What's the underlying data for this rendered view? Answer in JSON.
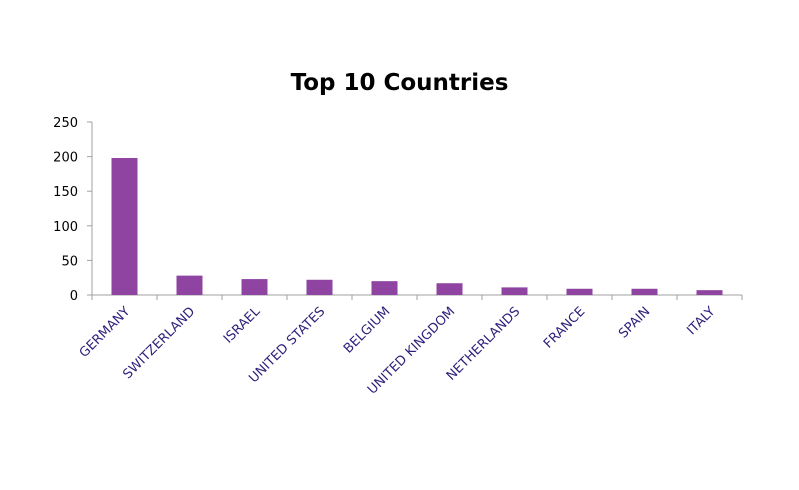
{
  "chart_data": {
    "type": "bar",
    "title": "Top 10 Countries",
    "xlabel": "",
    "ylabel": "",
    "categories": [
      "GERMANY",
      "SWITZERLAND",
      "ISRAEL",
      "UNITED STATES",
      "BELGIUM",
      "UNITED KINGDOM",
      "NETHERLANDS",
      "FRANCE",
      "SPAIN",
      "ITALY"
    ],
    "values": [
      198,
      28,
      23,
      22,
      20,
      17,
      11,
      9,
      9,
      7
    ],
    "ylim": [
      0,
      250
    ],
    "yticks": [
      0,
      50,
      100,
      150,
      200,
      250
    ],
    "grid": false,
    "legend": "none",
    "bar_color": "#8e44a0",
    "label_color": "#2e1f7a",
    "axis_color": "#a0a0a0"
  }
}
